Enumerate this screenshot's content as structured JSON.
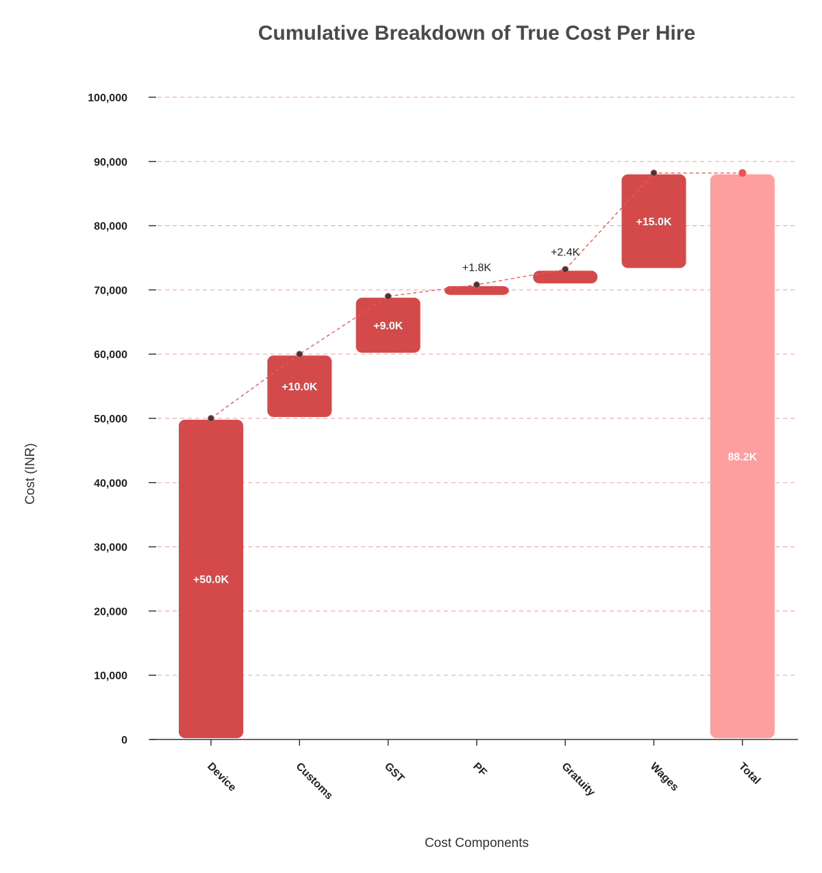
{
  "chart_data": {
    "type": "bar",
    "subtype": "waterfall",
    "title": "Cumulative Breakdown of True Cost Per Hire",
    "xlabel": "Cost Components",
    "ylabel": "Cost (INR)",
    "ylim": [
      0,
      100000
    ],
    "yticks": [
      0,
      10000,
      20000,
      30000,
      40000,
      50000,
      60000,
      70000,
      80000,
      90000,
      100000
    ],
    "ytick_labels": [
      "0",
      "10,000",
      "20,000",
      "30,000",
      "40,000",
      "50,000",
      "60,000",
      "70,000",
      "80,000",
      "90,000",
      "100,000"
    ],
    "categories": [
      "Device",
      "Customs",
      "GST",
      "PF",
      "Gratuity",
      "Wages",
      "Total"
    ],
    "increments": [
      50000,
      10000,
      9000,
      1800,
      2400,
      15000,
      null
    ],
    "cumulative": [
      50000,
      60000,
      69000,
      70800,
      73200,
      88200,
      88200
    ],
    "total": 88200,
    "bar_labels": [
      "+50.0K",
      "+10.0K",
      "+9.0K",
      "+1.8K",
      "+2.4K",
      "+15.0K",
      "88.2K"
    ],
    "grid": true,
    "legend": "none",
    "colors": {
      "increase": "#d44a4a",
      "total": "#ff9e9e",
      "connector": "#e85b5b",
      "marker": "#3a3a3a",
      "total_marker": "#f05252",
      "gridline": "#f4a9a9",
      "axis": "#333333"
    }
  }
}
